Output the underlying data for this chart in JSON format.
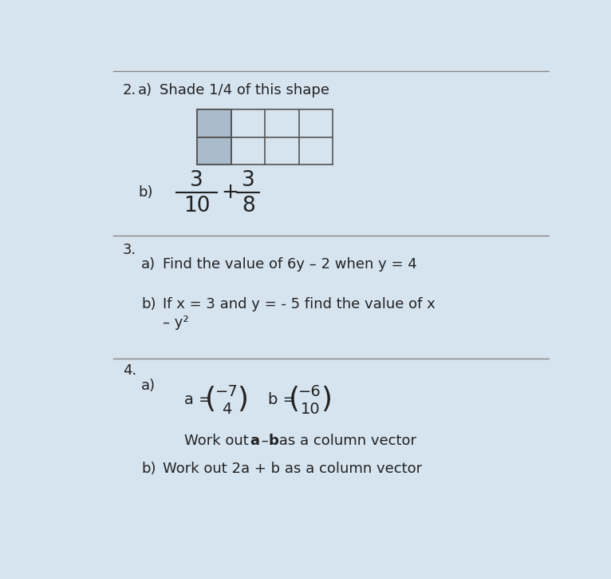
{
  "bg_color": "#ccd8e8",
  "paper_color": "#d6e4f0",
  "line_color": "#888888",
  "text_color": "#222222",
  "grid_color": "#555555",
  "shaded_color": "#aabbcc",
  "figsize": [
    7.66,
    7.25
  ],
  "dpi": 100,
  "sections": {
    "q2_num": "2.",
    "q2a_label": "a)",
    "q2a_text": "Shade 1/4 of this shape",
    "q2b_label": "b)",
    "q2b_frac1_num": "3",
    "q2b_frac1_den": "10",
    "q2b_plus": "+",
    "q2b_frac2_num": "3",
    "q2b_frac2_den": "8",
    "q3_num": "3.",
    "q3a_label": "a)",
    "q3a_text": "Find the value of 6y – 2 when y = 4",
    "q3b_label": "b)",
    "q3b_text1": "If x = 3 and y = - 5 find the value of x",
    "q3b_text2": "– y²",
    "q4_num": "4.",
    "q4a_label": "a)",
    "q4a_vec_a_label": "a =",
    "q4a_vec_a_top": "−7",
    "q4a_vec_a_bot": "4",
    "q4a_vec_b_label": "b =",
    "q4a_vec_b_top": "−6",
    "q4a_vec_b_bot": "10",
    "q4a_work_bold_a": "a",
    "q4a_work_bold_b": "b",
    "q4a_work_text": "Work out  a – b as a column vector",
    "q4b_label": "b)",
    "q4b_text": "Work out 2a + b as a column vector"
  }
}
